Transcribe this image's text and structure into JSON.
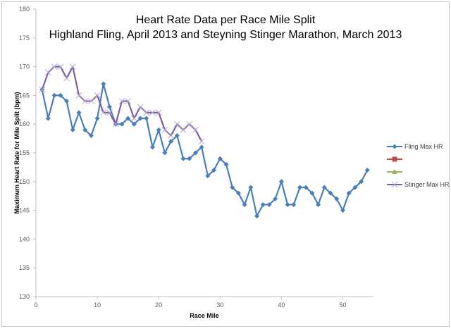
{
  "chart_data": {
    "type": "line",
    "title": "Heart Rate Data per Race Mile Split",
    "subtitle": "Highland Fling, April 2013 and Steyning Stinger Marathon, March 2013",
    "xlabel": "Race Mile",
    "ylabel": "Maximum Heart Rate for Mile Split (bpm)",
    "xlim": [
      0,
      55
    ],
    "ylim": [
      130,
      180
    ],
    "xticks": [
      0,
      10,
      20,
      30,
      40,
      50
    ],
    "yticks": [
      130,
      135,
      140,
      145,
      150,
      155,
      160,
      165,
      170,
      175,
      180
    ],
    "grid": false,
    "legend_position": "right",
    "series": [
      {
        "name": "Fling Max HR",
        "color": "#4a7ebb",
        "marker": "diamond",
        "x": [
          1,
          2,
          3,
          4,
          5,
          6,
          7,
          8,
          9,
          10,
          11,
          12,
          13,
          14,
          15,
          16,
          17,
          18,
          19,
          20,
          21,
          22,
          23,
          24,
          25,
          26,
          27,
          28,
          29,
          30,
          31,
          32,
          33,
          34,
          35,
          36,
          37,
          38,
          39,
          40,
          41,
          42,
          43,
          44,
          45,
          46,
          47,
          48,
          49,
          50,
          51,
          52,
          53,
          54
        ],
        "values": [
          166,
          161,
          165,
          165,
          164,
          159,
          162,
          159,
          158,
          161,
          167,
          163,
          160,
          160,
          161,
          160,
          161,
          161,
          156,
          159,
          155,
          157,
          158,
          154,
          154,
          155,
          156,
          151,
          152,
          154,
          153,
          149,
          148,
          146,
          149,
          144,
          146,
          146,
          147,
          150,
          146,
          146,
          149,
          149,
          148,
          146,
          149,
          148,
          147,
          145,
          148,
          149,
          150,
          152
        ]
      },
      {
        "name": "",
        "color": "#be4b48",
        "marker": "square",
        "x": [],
        "values": []
      },
      {
        "name": "",
        "color": "#98b954",
        "marker": "triangle",
        "x": [],
        "values": []
      },
      {
        "name": "Stinger Max HR",
        "color": "#7d60a0",
        "marker": "x",
        "x": [
          1,
          2,
          3,
          4,
          5,
          6,
          7,
          8,
          9,
          10,
          11,
          12,
          13,
          14,
          15,
          16,
          17,
          18,
          19,
          20,
          21,
          22,
          23,
          24,
          25,
          26,
          27
        ],
        "values": [
          166,
          169,
          170,
          170,
          168,
          170,
          165,
          164,
          164,
          165,
          162,
          162,
          160,
          164,
          164,
          161,
          163,
          162,
          162,
          162,
          159,
          158,
          160,
          159,
          160,
          159,
          157
        ]
      }
    ]
  }
}
